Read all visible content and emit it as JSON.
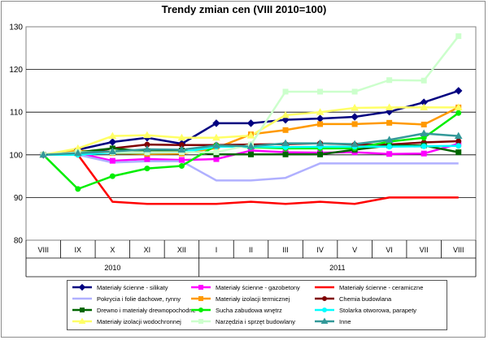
{
  "chart_data": {
    "type": "line",
    "title": "Trendy zmian cen (VIII 2010=100)",
    "xlabel": "",
    "ylabel": "",
    "ylim": [
      80,
      130
    ],
    "yticks": [
      80,
      90,
      100,
      110,
      120,
      130
    ],
    "grid": "horizontal",
    "legend_position": "bottom",
    "categories": [
      "VIII",
      "IX",
      "X",
      "XI",
      "XII",
      "I",
      "II",
      "III",
      "IV",
      "V",
      "VI",
      "VII",
      "VIII"
    ],
    "year_groups": [
      {
        "label": "2010",
        "count": 5
      },
      {
        "label": "2011",
        "count": 8
      }
    ],
    "series": [
      {
        "name": "Materiały ścienne - silikaty",
        "color": "#000080",
        "marker": "diamond",
        "values": [
          100,
          101.2,
          103,
          104,
          102.6,
          107.4,
          107.4,
          108.2,
          108.5,
          108.9,
          110.1,
          112.3,
          115
        ]
      },
      {
        "name": "Materiały ścienne - gazobetony",
        "color": "#ff00ff",
        "marker": "square",
        "values": [
          100,
          100.4,
          98.6,
          99,
          98.8,
          99,
          101,
          100.6,
          100.5,
          100.6,
          100.2,
          100.3,
          102.6
        ]
      },
      {
        "name": "Materiały ścienne - ceramiczne",
        "color": "#ff0000",
        "marker": "none",
        "values": [
          100,
          100,
          89,
          88.5,
          88.5,
          88.5,
          89,
          88.5,
          89,
          88.5,
          90,
          90,
          90
        ]
      },
      {
        "name": "Pokrycia i folie dachowe, rynny",
        "color": "#b0b0ff",
        "marker": "none",
        "values": [
          100,
          100,
          98.2,
          98.5,
          98.5,
          94,
          94,
          94.6,
          98,
          98,
          98,
          98,
          98
        ]
      },
      {
        "name": "Materiały izolacji termicznej",
        "color": "#ff9900",
        "marker": "square",
        "values": [
          100,
          101,
          100.4,
          100.2,
          100.3,
          101.6,
          104.8,
          105.8,
          107.2,
          107.2,
          107.5,
          107.1,
          111.1
        ]
      },
      {
        "name": "Chemia budowlana",
        "color": "#800000",
        "marker": "circle",
        "values": [
          100,
          100,
          101.5,
          102.4,
          102.3,
          102.3,
          102.4,
          102.5,
          102.7,
          102.4,
          102.4,
          102.9,
          103.2
        ]
      },
      {
        "name": "Drewno i materiały drewnopochodne",
        "color": "#006600",
        "marker": "square",
        "values": [
          100,
          100.6,
          101.5,
          100.8,
          101,
          100.1,
          100.1,
          100.1,
          100.1,
          101.2,
          102.2,
          102.2,
          100.6
        ]
      },
      {
        "name": "Sucha zabudowa wnętrz",
        "color": "#00ee00",
        "marker": "circle",
        "values": [
          100,
          92,
          95,
          96.8,
          97.4,
          102.2,
          101.8,
          101.5,
          101.5,
          101.5,
          103.1,
          104,
          109.8
        ]
      },
      {
        "name": "Stolarka otworowa, parapety",
        "color": "#00ffff",
        "marker": "circle",
        "values": [
          100,
          100,
          100.5,
          100.5,
          100.6,
          101.9,
          101.9,
          101.8,
          101.9,
          101.9,
          101.9,
          102,
          102.1
        ]
      },
      {
        "name": "Materiały izolacji wodochronnej",
        "color": "#ffff66",
        "marker": "triangle",
        "values": [
          100,
          101.5,
          104.4,
          104.6,
          104,
          104,
          104.5,
          109.3,
          110,
          111,
          111.1,
          111.1,
          111.1
        ]
      },
      {
        "name": "Narzędzia i sprzęt budowlany",
        "color": "#ccffcc",
        "marker": "square",
        "values": [
          100,
          100.6,
          100.6,
          100.6,
          100.6,
          100.6,
          102.4,
          114.8,
          114.8,
          114.8,
          117.5,
          117.4,
          127.8
        ]
      },
      {
        "name": "Inne",
        "color": "#339999",
        "marker": "triangle",
        "values": [
          100,
          100.4,
          100.8,
          101.3,
          101.2,
          102.2,
          102,
          102.7,
          102.7,
          102.5,
          103.5,
          105,
          104.4
        ]
      }
    ]
  }
}
